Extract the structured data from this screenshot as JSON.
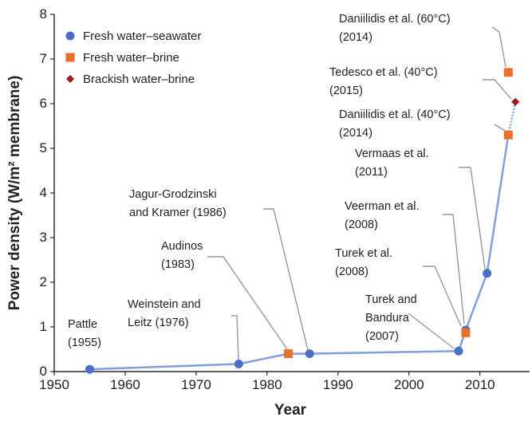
{
  "chart_data": {
    "type": "scatter",
    "xlabel": "Year",
    "ylabel": "Power density (W/m² membrane)",
    "xlim": [
      1950,
      2017
    ],
    "xticks": [
      1950,
      1960,
      1970,
      1980,
      1990,
      2000,
      2010
    ],
    "ylim": [
      0,
      8
    ],
    "yticks": [
      0,
      1,
      2,
      3,
      4,
      5,
      6,
      7,
      8
    ],
    "legend": "upper left",
    "line_color": "#7f9fe0",
    "series": [
      {
        "name": "Fresh water–seawater",
        "color": "#4a6fc4",
        "marker": "circle",
        "x": [
          1955,
          1976,
          1986,
          2007,
          2008,
          2011
        ],
        "values": [
          0.05,
          0.17,
          0.4,
          0.46,
          0.93,
          2.2
        ]
      },
      {
        "name": "Fresh water–brine",
        "color": "#e8702a",
        "marker": "square",
        "x": [
          1983,
          2008,
          2014,
          2014
        ],
        "values": [
          0.4,
          0.87,
          5.3,
          6.7
        ]
      },
      {
        "name": "Brackish water–brine",
        "color": "#a01818",
        "marker": "diamond",
        "x": [
          2015
        ],
        "values": [
          6.04
        ]
      }
    ],
    "annotations": [
      {
        "lines": [
          "Pattle",
          "(1955)"
        ]
      },
      {
        "lines": [
          "Weinstein and",
          "Leitz (1976)"
        ]
      },
      {
        "lines": [
          "Audinos",
          "(1983)"
        ]
      },
      {
        "lines": [
          "Jagur-Grodzinski",
          "and Kramer (1986)"
        ]
      },
      {
        "lines": [
          "Turek and",
          "Bandura",
          "(2007)"
        ]
      },
      {
        "lines": [
          "Turek et al.",
          "(2008)"
        ]
      },
      {
        "lines": [
          "Veerman et al.",
          "(2008)"
        ]
      },
      {
        "lines": [
          "Vermaas et al.",
          "(2011)"
        ]
      },
      {
        "lines": [
          "Daniilidis et al. (40°C)",
          "(2014)"
        ]
      },
      {
        "lines": [
          "Tedesco et al. (40°C)",
          "(2015)"
        ]
      },
      {
        "lines": [
          "Daniilidis et al. (60°C)",
          "(2014)"
        ]
      }
    ]
  }
}
